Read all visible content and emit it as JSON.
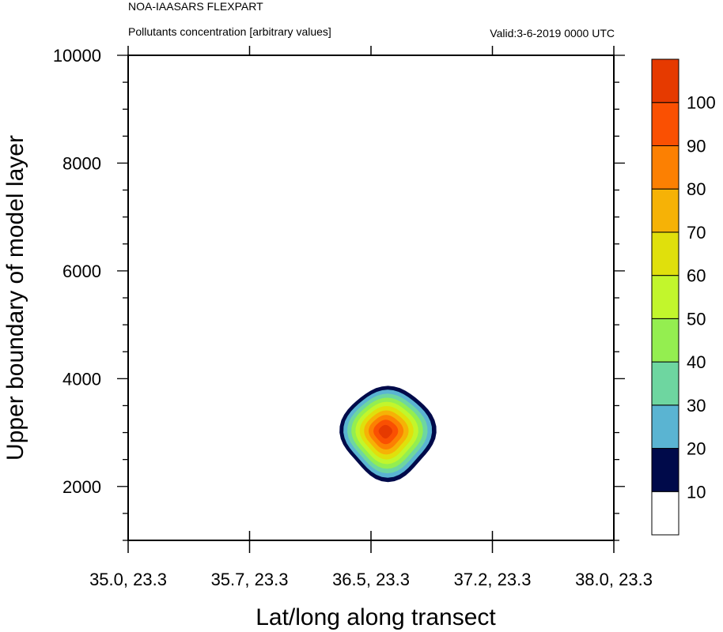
{
  "header": {
    "title": "NOA-IAASARS FLEXPART",
    "subtitle": "Pollutants concentration [arbitrary values]",
    "valid": "Valid:3-6-2019 0000 UTC"
  },
  "chart_data": {
    "type": "contour",
    "xlabel": "Lat/long along transect",
    "ylabel": "Upper boundary of model layer",
    "x_tick_labels": [
      "35.0, 23.3",
      "35.7, 23.3",
      "36.5, 23.3",
      "37.2, 23.3",
      "38.0, 23.3"
    ],
    "ylim": [
      1000,
      10000
    ],
    "y_ticks": [
      2000,
      4000,
      6000,
      8000,
      10000
    ],
    "colorbar": {
      "levels": [
        10,
        20,
        30,
        40,
        50,
        60,
        70,
        80,
        90,
        100
      ],
      "colors": [
        "#ffffff",
        "#000a4a",
        "#5ab4d2",
        "#6ed6a0",
        "#94ee50",
        "#c2f62c",
        "#e0e00c",
        "#f6b206",
        "#fc8002",
        "#fa5002",
        "#e63a00"
      ]
    },
    "plume": {
      "center_x_fraction": 0.535,
      "center_y": 3000,
      "peak_level": 100,
      "x_halfwidth_fraction": 0.095,
      "y_halfwidth": 850
    }
  }
}
